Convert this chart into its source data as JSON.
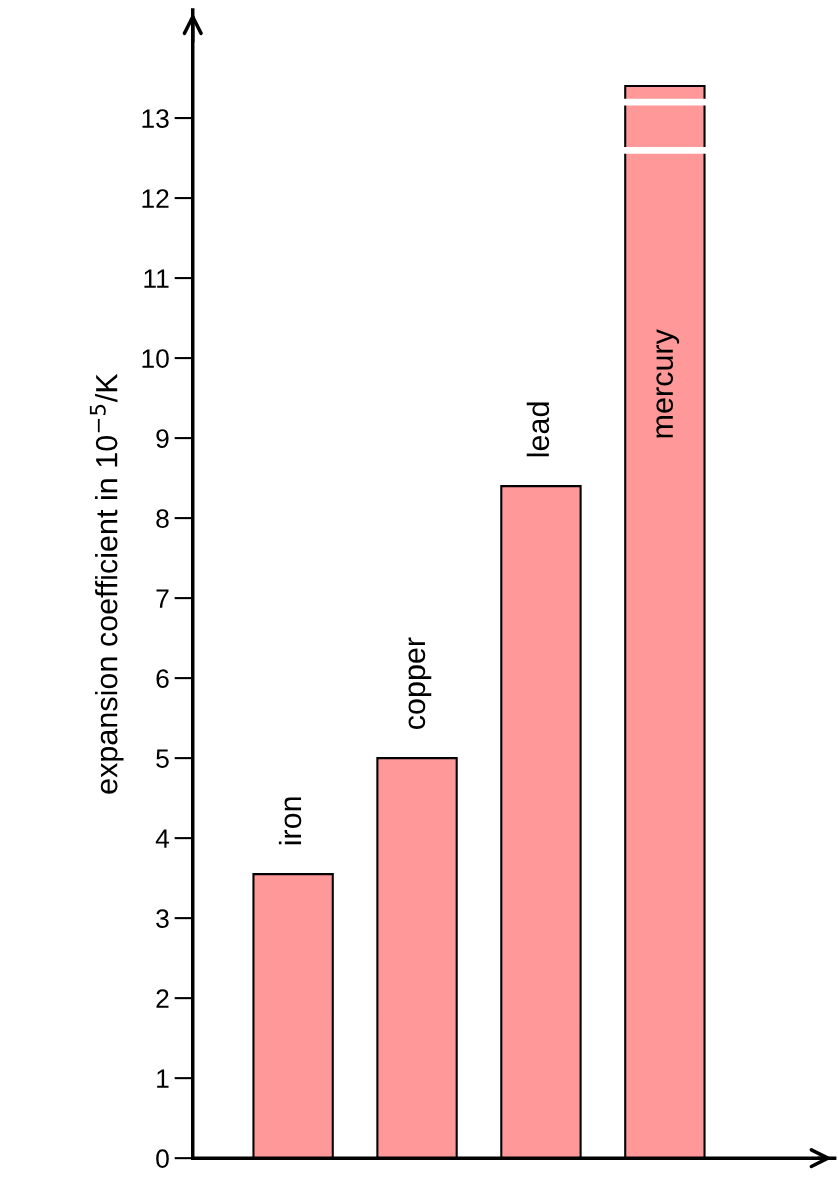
{
  "chart_data": {
    "type": "bar",
    "ylabel": "expansion coefficient in 10$^{−5}$/K",
    "categories": [
      "iron",
      "copper",
      "lead",
      "mercury"
    ],
    "values": [
      3.55,
      5.0,
      8.4,
      13.4
    ],
    "color": "#ff9999",
    "ylim": [
      0,
      14.35
    ],
    "yticks": [
      0,
      1,
      2,
      3,
      4,
      5,
      6,
      7,
      8,
      9,
      10,
      11,
      12,
      13
    ],
    "tick_labels": "y",
    "grid": false
  }
}
